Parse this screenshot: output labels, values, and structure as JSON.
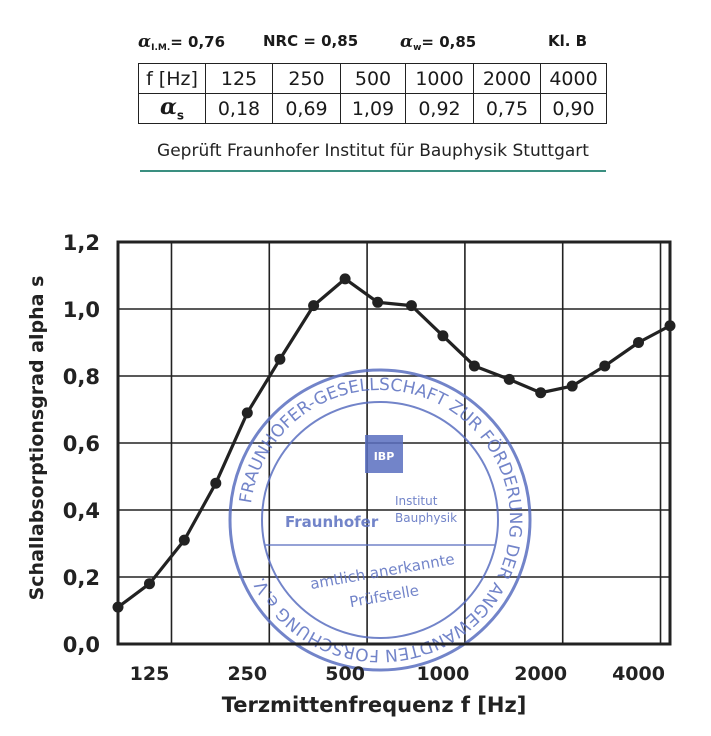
{
  "metrics": {
    "alpha_im_symbol": "α",
    "alpha_im_sub": "I.M.",
    "alpha_im_value": "= 0,76",
    "nrc": "NRC = 0,85",
    "alpha_w_symbol": "α",
    "alpha_w_sub": "w",
    "alpha_w_value": "= 0,85",
    "class": "Kl.  B"
  },
  "table": {
    "row1_header": "f [Hz]",
    "row2_header_symbol": "α",
    "row2_header_sub": "s",
    "frequencies": [
      "125",
      "250",
      "500",
      "1000",
      "2000",
      "4000"
    ],
    "alpha_values": [
      "0,18",
      "0,69",
      "1,09",
      "0,92",
      "0,75",
      "0,90"
    ]
  },
  "test_note": "Geprüft Fraunhofer Institut für Bauphysik Stuttgart",
  "stamp": {
    "outer_text": "FRAUNHOFER-GESELLSCHAFT ZUR FÖRDERUNG DER ANGEWANDTEN FORSCHUNG e.V.",
    "logo_text": "IBP",
    "name": "Fraunhofer",
    "institute_line1": "Institut",
    "institute_line2": "Bauphysik",
    "approved_line1": "amtlich anerkannte",
    "approved_line2": "Prüfstelle",
    "color": "#5a6fc0"
  },
  "chart_data": {
    "type": "line",
    "ylabel": "Schallabsorptionsgrad alpha s",
    "xlabel": "Terzmittenfrequenz f [Hz]",
    "ylim": [
      0,
      1.2
    ],
    "yticks": [
      "0,0",
      "0,2",
      "0,4",
      "0,6",
      "0,8",
      "1,0",
      "1,2"
    ],
    "xticks": [
      "125",
      "250",
      "500",
      "1000",
      "2000",
      "4000"
    ],
    "grid": true,
    "x_scale": "log (third-octave bands)",
    "series": [
      {
        "x": [
          100,
          125,
          160,
          200,
          250,
          315,
          400,
          500,
          630,
          800,
          1000,
          1250,
          1600,
          2000,
          2500,
          3150,
          4000,
          5000
        ],
        "values": [
          0.11,
          0.18,
          0.31,
          0.48,
          0.69,
          0.85,
          1.01,
          1.09,
          1.02,
          1.01,
          0.92,
          0.83,
          0.79,
          0.75,
          0.77,
          0.83,
          0.9,
          0.95
        ],
        "color": "#222222"
      }
    ]
  }
}
